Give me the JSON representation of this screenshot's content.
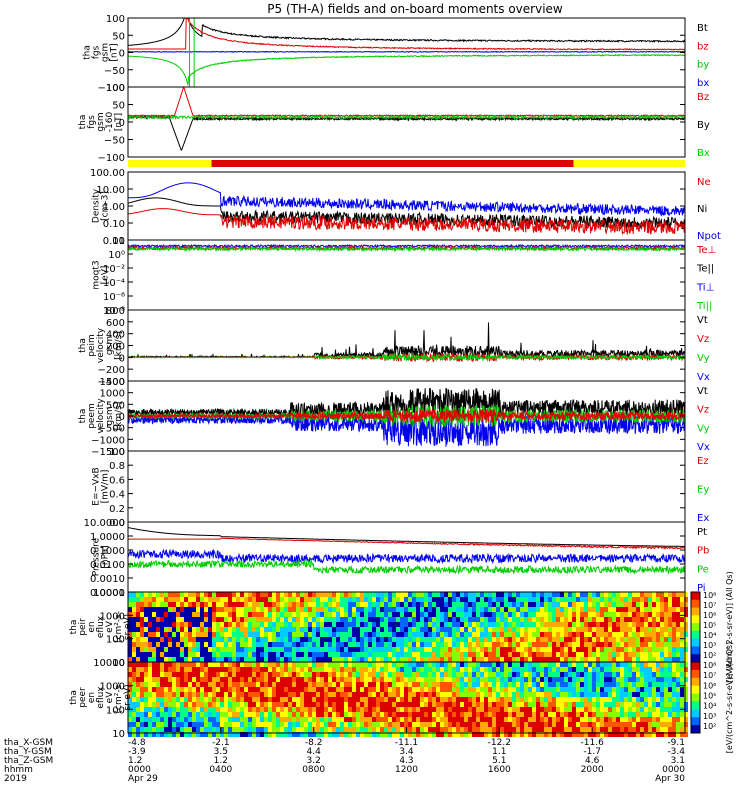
{
  "title": "P5 (TH-A) fields and on-board moments overview",
  "colors": {
    "black": "#000000",
    "red": "#e00000",
    "green": "#00cc00",
    "blue": "#0000ee",
    "yellow": "#ffff00"
  },
  "chart_data": [
    {
      "type": "line",
      "ylabel": [
        "tha",
        "fgs",
        "gsm",
        "[nT]"
      ],
      "yticks": [
        "100",
        "50",
        "0",
        "−50",
        "−100"
      ],
      "ylim": [
        -100,
        100
      ],
      "legend": [
        "Bt",
        "bz",
        "by",
        "bx"
      ]
    },
    {
      "type": "line",
      "ylabel": [
        "tha",
        "fgs",
        "gsm",
        "-160",
        "[nT]"
      ],
      "yticks": [
        "100",
        "50",
        "0",
        "−50",
        "−100"
      ],
      "ylim": [
        -120,
        100
      ],
      "legend": [
        "Bz",
        "By",
        "Bx"
      ]
    },
    {
      "type": "bar",
      "description_colors": [
        "yellow",
        "red",
        "yellow"
      ],
      "segments_hours": [
        [
          0,
          3.6,
          "yellow"
        ],
        [
          3.6,
          19.2,
          "red"
        ],
        [
          19.2,
          24,
          "yellow"
        ]
      ]
    },
    {
      "type": "line",
      "ylabel": [
        "Density",
        "[cm-3]"
      ],
      "yticks": [
        "100.00",
        "10.00",
        "1.00",
        "0.10",
        "0.01"
      ],
      "scale": "log",
      "legend": [
        "Ne",
        "Ni",
        "Npot"
      ]
    },
    {
      "type": "line",
      "ylabel": [
        "moqt3",
        "[eV]"
      ],
      "yticks": [
        "10",
        "10⁰",
        "10⁻²",
        "10⁻⁴",
        "10⁻⁶",
        "10⁻⁸"
      ],
      "scale": "log",
      "legend": [
        "Te⊥",
        "Te||",
        "Ti⊥",
        "Ti||"
      ]
    },
    {
      "type": "line",
      "ylabel": [
        "tha",
        "peim",
        "velocity",
        "gsm",
        "[km/s]"
      ],
      "yticks": [
        "800",
        "600",
        "400",
        "200",
        "0",
        "−200",
        "−400"
      ],
      "ylim": [
        -400,
        800
      ],
      "legend": [
        "Vt",
        "Vz",
        "Vy",
        "Vx"
      ]
    },
    {
      "type": "line",
      "ylabel": [
        "tha",
        "peem",
        "velocity",
        "gsm",
        "[km/s]"
      ],
      "yticks": [
        "1500",
        "1000",
        "500",
        "0",
        "−500",
        "−1000",
        "−1500"
      ],
      "ylim": [
        -1500,
        1500
      ],
      "legend": [
        "Vt",
        "Vz",
        "Vy",
        "Vx"
      ]
    },
    {
      "type": "line",
      "ylabel": [
        "E=−VxB",
        "[mV/m]"
      ],
      "yticks": [
        "1.0",
        "0.8",
        "0.6",
        "0.4",
        "0.2",
        "0.0"
      ],
      "ylim": [
        0,
        1
      ],
      "legend": [
        "Ez",
        "Ey",
        "Ex"
      ]
    },
    {
      "type": "line",
      "ylabel": [
        "Pressure",
        "[nPa]"
      ],
      "yticks": [
        "10.0000",
        "1.0000",
        "0.1000",
        "0.0100",
        "0.0010",
        "0.0001"
      ],
      "scale": "log",
      "legend": [
        "Pt",
        "Pb",
        "Pe",
        "Pi"
      ]
    },
    {
      "type": "heatmap",
      "ylabel": [
        "tha",
        "peir",
        "en",
        "eflux",
        "eV",
        "(cm²-s-",
        "sr-eV)"
      ],
      "yticks": [
        "10000",
        "1000",
        "100",
        "10"
      ],
      "scale": "log"
    },
    {
      "type": "heatmap",
      "ylabel": [
        "tha",
        "peer",
        "en",
        "eflux",
        "eV",
        "(cm²-s-",
        "sr-eV)"
      ],
      "yticks": [
        "10000",
        "1000",
        "100",
        "10"
      ],
      "scale": "log"
    }
  ],
  "colorbar_top": {
    "ticks": [
      "10⁸",
      "10⁷",
      "10⁶",
      "10⁵",
      "10⁴",
      "10³",
      "10²"
    ],
    "label": "[eV/(cm^2-s-sr-eV)] (All Qs)"
  },
  "colorbar_bottom": {
    "ticks": [
      "10⁸",
      "10⁷",
      "10⁶",
      "10⁵",
      "10⁴",
      "10³",
      "10²"
    ],
    "label": "[eV/(cm^2-s-sr-eV)] (All Qs)"
  },
  "xaxis": {
    "rows": [
      {
        "label": "tha_X-GSM",
        "values": [
          "-4.8",
          "-2.1",
          "-8.2",
          "-11.1",
          "-12.2",
          "-11.6",
          "-9.1"
        ]
      },
      {
        "label": "tha_Y-GSM",
        "values": [
          "-3.9",
          "3.5",
          "4.4",
          "3.4",
          "1.1",
          "-1.7",
          "-3.4"
        ]
      },
      {
        "label": "tha_Z-GSM",
        "values": [
          "1.2",
          "1.2",
          "3.2",
          "4.3",
          "5.1",
          "4.6",
          "3.1"
        ]
      },
      {
        "label": "hhmm",
        "values": [
          "0000",
          "0400",
          "0800",
          "1200",
          "1600",
          "2000",
          "0000"
        ]
      },
      {
        "label": "2019",
        "values": [
          "Apr 29",
          "",
          "",
          "",
          "",
          "",
          "Apr 30"
        ]
      }
    ]
  }
}
